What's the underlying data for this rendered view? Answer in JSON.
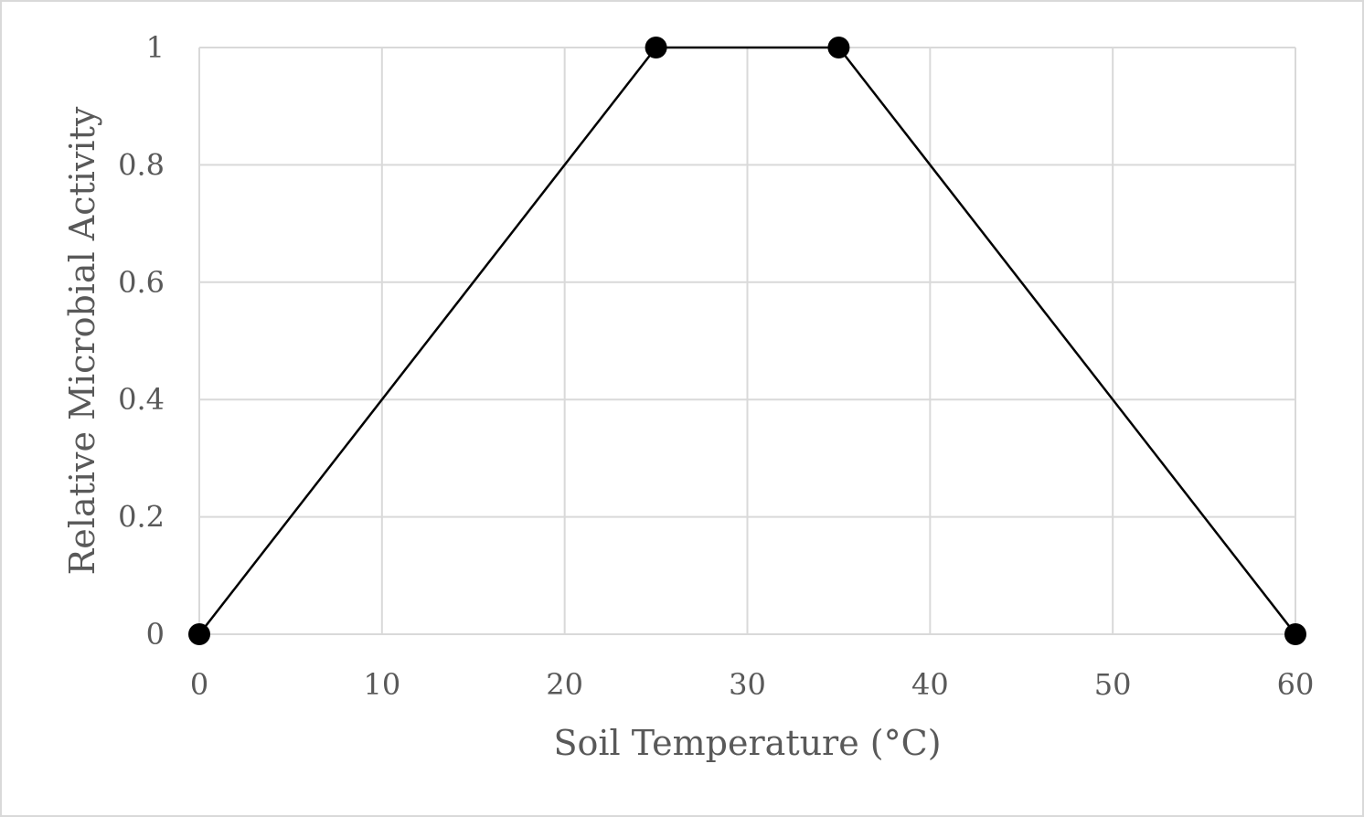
{
  "chart_data": {
    "type": "line",
    "title": "",
    "xlabel": "Soil Temperature (°C)",
    "ylabel": "Relative Microbial Activity",
    "xlim": [
      0,
      60
    ],
    "ylim": [
      0,
      1
    ],
    "x_ticks": [
      0,
      10,
      20,
      30,
      40,
      50,
      60
    ],
    "y_ticks": [
      0,
      0.2,
      0.4,
      0.6,
      0.8,
      1
    ],
    "x_tick_labels": [
      "0",
      "10",
      "20",
      "30",
      "40",
      "50",
      "60"
    ],
    "y_tick_labels": [
      "0",
      "0.2",
      "0.4",
      "0.6",
      "0.8",
      "1"
    ],
    "grid": true,
    "legend": "none",
    "series": [
      {
        "x": [
          0,
          25,
          35,
          60
        ],
        "y": [
          0,
          1,
          1,
          0
        ],
        "color": "#000000",
        "marker": "circle"
      }
    ],
    "colors": {
      "grid": "#d9d9d9",
      "text": "#595959",
      "line": "#000000"
    }
  }
}
